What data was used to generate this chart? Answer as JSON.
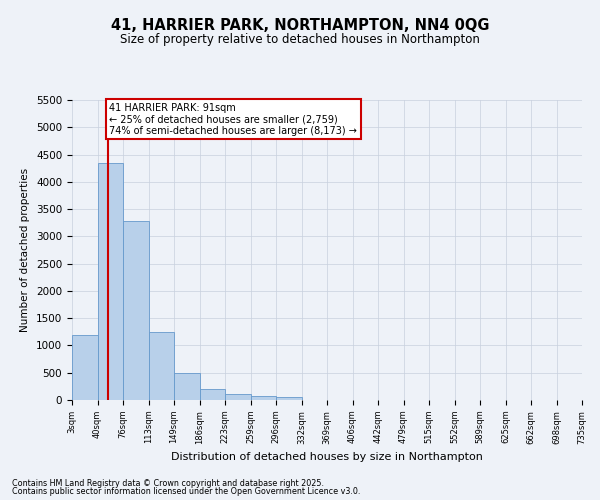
{
  "title": "41, HARRIER PARK, NORTHAMPTON, NN4 0QG",
  "subtitle": "Size of property relative to detached houses in Northampton",
  "xlabel": "Distribution of detached houses by size in Northampton",
  "ylabel": "Number of detached properties",
  "bin_labels": [
    "3sqm",
    "40sqm",
    "76sqm",
    "113sqm",
    "149sqm",
    "186sqm",
    "223sqm",
    "259sqm",
    "296sqm",
    "332sqm",
    "369sqm",
    "406sqm",
    "442sqm",
    "479sqm",
    "515sqm",
    "552sqm",
    "589sqm",
    "625sqm",
    "662sqm",
    "698sqm",
    "735sqm"
  ],
  "bar_values": [
    1200,
    4350,
    3280,
    1250,
    500,
    200,
    110,
    70,
    50,
    0,
    0,
    0,
    0,
    0,
    0,
    0,
    0,
    0,
    0,
    0
  ],
  "bar_color": "#b8d0ea",
  "bar_edge_color": "#6699cc",
  "vline_color": "#cc0000",
  "vline_x": 1.42,
  "annotation_text": "41 HARRIER PARK: 91sqm\n← 25% of detached houses are smaller (2,759)\n74% of semi-detached houses are larger (8,173) →",
  "annotation_box_color": "#ffffff",
  "annotation_box_edge": "#cc0000",
  "ylim": [
    0,
    5500
  ],
  "yticks": [
    0,
    500,
    1000,
    1500,
    2000,
    2500,
    3000,
    3500,
    4000,
    4500,
    5000,
    5500
  ],
  "footer_line1": "Contains HM Land Registry data © Crown copyright and database right 2025.",
  "footer_line2": "Contains public sector information licensed under the Open Government Licence v3.0.",
  "bg_color": "#eef2f8",
  "plot_bg_color": "#eef2f8",
  "grid_color": "#c8d0de"
}
